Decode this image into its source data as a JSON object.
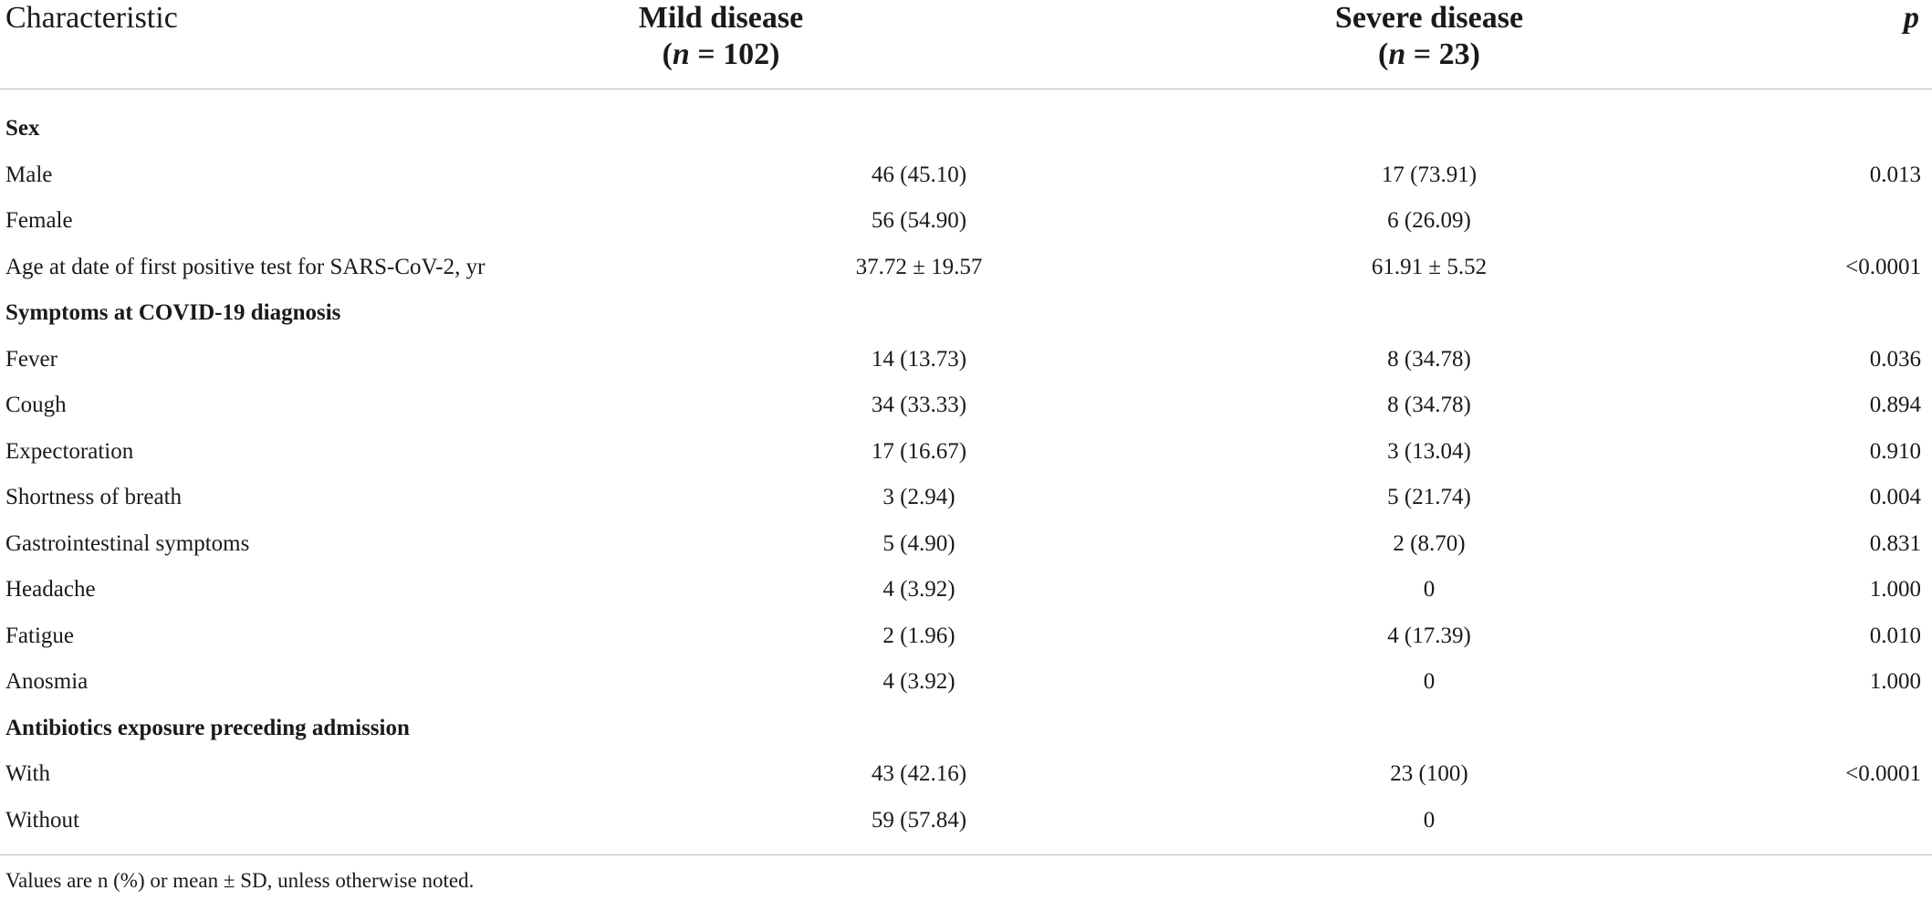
{
  "table": {
    "headers": {
      "characteristic": "Characteristic",
      "mild_title": "Mild disease",
      "mild_n": "(n = 102)",
      "severe_title": "Severe disease",
      "severe_n": "(n = 23)",
      "p": "p"
    },
    "rows": [
      {
        "label": "Sex",
        "mild": "",
        "severe": "",
        "p": "",
        "section": true
      },
      {
        "label": "Male",
        "mild": "46 (45.10)",
        "severe": "17 (73.91)",
        "p": "0.013"
      },
      {
        "label": "Female",
        "mild": "56 (54.90)",
        "severe": "6 (26.09)",
        "p": ""
      },
      {
        "label": "Age at date of first positive test for SARS-CoV-2, yr",
        "mild": "37.72 ± 19.57",
        "severe": "61.91 ± 5.52",
        "p": "<0.0001"
      },
      {
        "label": "Symptoms at COVID-19 diagnosis",
        "mild": "",
        "severe": "",
        "p": "",
        "section": true
      },
      {
        "label": "Fever",
        "mild": "14 (13.73)",
        "severe": "8 (34.78)",
        "p": "0.036"
      },
      {
        "label": "Cough",
        "mild": "34 (33.33)",
        "severe": "8 (34.78)",
        "p": "0.894"
      },
      {
        "label": "Expectoration",
        "mild": "17 (16.67)",
        "severe": "3 (13.04)",
        "p": "0.910"
      },
      {
        "label": "Shortness of breath",
        "mild": "3 (2.94)",
        "severe": "5 (21.74)",
        "p": "0.004"
      },
      {
        "label": "Gastrointestinal symptoms",
        "mild": "5 (4.90)",
        "severe": "2 (8.70)",
        "p": "0.831"
      },
      {
        "label": "Headache",
        "mild": "4 (3.92)",
        "severe": "0",
        "p": "1.000"
      },
      {
        "label": "Fatigue",
        "mild": "2 (1.96)",
        "severe": "4 (17.39)",
        "p": "0.010"
      },
      {
        "label": "Anosmia",
        "mild": "4 (3.92)",
        "severe": "0",
        "p": "1.000"
      },
      {
        "label": "Antibiotics exposure preceding admission",
        "mild": "",
        "severe": "",
        "p": "",
        "section": true
      },
      {
        "label": "With",
        "mild": "43 (42.16)",
        "severe": "23 (100)",
        "p": "<0.0001"
      },
      {
        "label": "Without",
        "mild": "59 (57.84)",
        "severe": "0",
        "p": ""
      }
    ],
    "footnote": "Values are n (%) or mean ± SD, unless otherwise noted."
  }
}
